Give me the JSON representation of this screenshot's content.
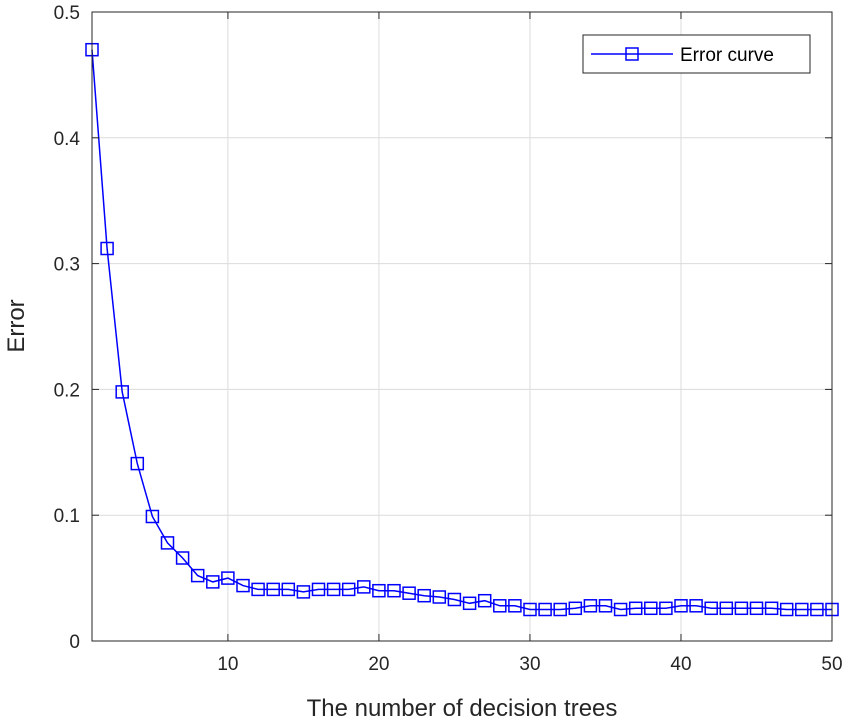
{
  "chart_data": {
    "type": "line",
    "xlabel": "The number of decision trees",
    "ylabel": "Error",
    "xlim": [
      1,
      50
    ],
    "ylim": [
      0,
      0.5
    ],
    "x_ticks": [
      10,
      20,
      30,
      40,
      50
    ],
    "y_ticks": [
      0,
      0.1,
      0.2,
      0.3,
      0.4,
      0.5
    ],
    "x_tick_labels": [
      "10",
      "20",
      "30",
      "40",
      "50"
    ],
    "y_tick_labels": [
      "0",
      "0.1",
      "0.2",
      "0.3",
      "0.4",
      "0.5"
    ],
    "grid": true,
    "legend_position": "top-right",
    "marker": "square",
    "series": [
      {
        "name": "Error curve",
        "color": "#0000ff",
        "x": [
          1,
          2,
          3,
          4,
          5,
          6,
          7,
          8,
          9,
          10,
          11,
          12,
          13,
          14,
          15,
          16,
          17,
          18,
          19,
          20,
          21,
          22,
          23,
          24,
          25,
          26,
          27,
          28,
          29,
          30,
          31,
          32,
          33,
          34,
          35,
          36,
          37,
          38,
          39,
          40,
          41,
          42,
          43,
          44,
          45,
          46,
          47,
          48,
          49,
          50
        ],
        "y": [
          0.47,
          0.312,
          0.198,
          0.141,
          0.099,
          0.078,
          0.066,
          0.052,
          0.047,
          0.05,
          0.044,
          0.041,
          0.041,
          0.041,
          0.039,
          0.041,
          0.041,
          0.041,
          0.043,
          0.04,
          0.04,
          0.038,
          0.036,
          0.035,
          0.033,
          0.03,
          0.032,
          0.028,
          0.028,
          0.025,
          0.025,
          0.025,
          0.026,
          0.028,
          0.028,
          0.025,
          0.026,
          0.026,
          0.026,
          0.028,
          0.028,
          0.026,
          0.026,
          0.026,
          0.026,
          0.026,
          0.025,
          0.025,
          0.025,
          0.025
        ]
      }
    ]
  }
}
